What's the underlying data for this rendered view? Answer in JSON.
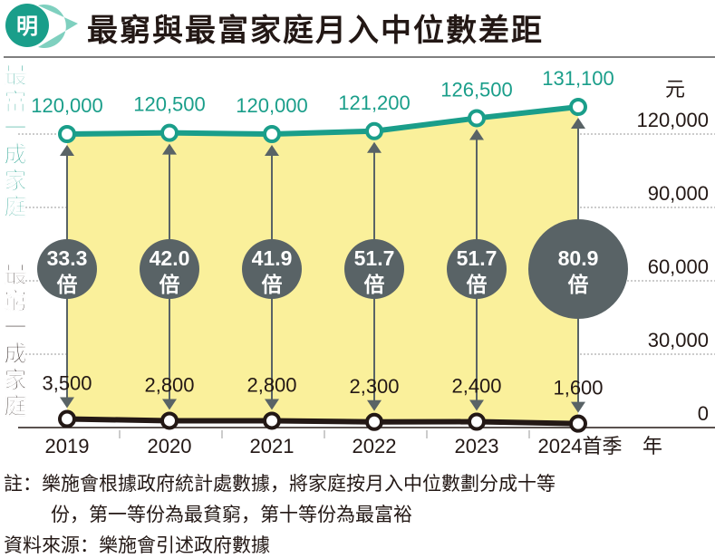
{
  "logo": {
    "text": "明"
  },
  "title": "最窮與最富家庭月入中位數差距",
  "chart_data": {
    "type": "line",
    "title": "最窮與最富家庭月入中位數差距",
    "unit": "元",
    "xlabel": "年",
    "categories": [
      "2019",
      "2020",
      "2021",
      "2022",
      "2023",
      "2024首季"
    ],
    "series": [
      {
        "name": "最富一成家庭",
        "values": [
          120000,
          120500,
          120000,
          121200,
          126500,
          131100
        ],
        "labels": [
          "120,000",
          "120,500",
          "120,000",
          "121,200",
          "126,500",
          "131,100"
        ],
        "color": "#1a9e8a"
      },
      {
        "name": "最窮一成家庭",
        "values": [
          3500,
          2800,
          2800,
          2300,
          2400,
          1600
        ],
        "labels": [
          "3,500",
          "2,800",
          "2,800",
          "2,300",
          "2,400",
          "1,600"
        ],
        "color": "#231815"
      }
    ],
    "ratios": [
      "33.3",
      "42.0",
      "41.9",
      "51.7",
      "51.7",
      "80.9"
    ],
    "ratio_suffix": "倍",
    "yticks": [
      0,
      30000,
      60000,
      90000,
      120000
    ],
    "ytick_labels": [
      "0",
      "30,000",
      "60,000",
      "90,000",
      "120,000"
    ],
    "ylim": [
      0,
      135000
    ],
    "fill_color": "#faf09b",
    "bubble_color": "#596366"
  },
  "notes": {
    "line1": "註：樂施會根據政府統計處數據，將家庭按月入中位數劃分成十等",
    "line2": "份，第一等份為最貧窮，第十等份為最富裕",
    "source": "資料來源：樂施會引述政府數據"
  }
}
